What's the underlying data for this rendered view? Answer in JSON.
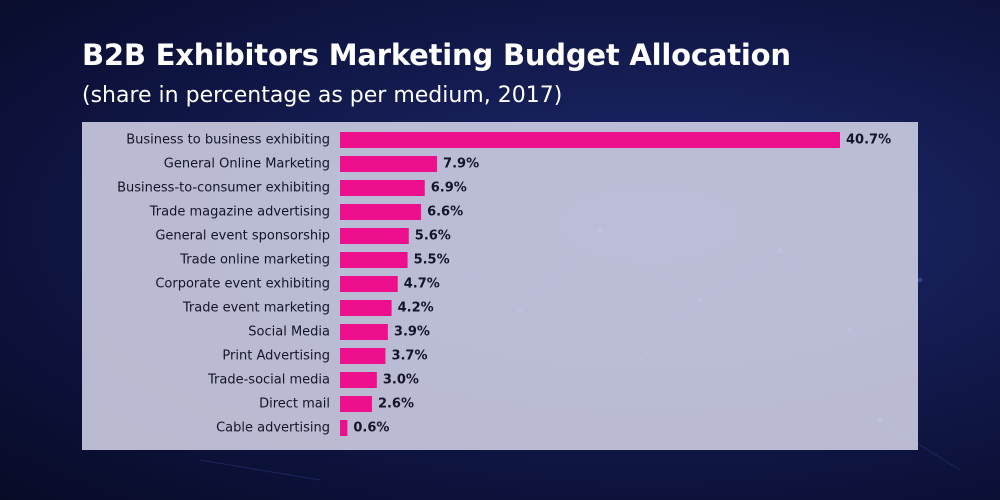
{
  "header": {
    "title": "B2B Exhibitors Marketing Budget Allocation",
    "subtitle": "(share in percentage as per medium, 2017)"
  },
  "colors": {
    "bar": "#ee0f8c",
    "panel": "#d6d6ea",
    "text": "#14142a",
    "background": "#111849"
  },
  "chart_data": {
    "type": "bar",
    "orientation": "horizontal",
    "title": "B2B Exhibitors Marketing Budget Allocation",
    "subtitle": "(share in percentage as per medium, 2017)",
    "categories": [
      "Business to business exhibiting",
      "General Online Marketing",
      "Business-to-consumer exhibiting",
      "Trade magazine advertising",
      "General event sponsorship",
      "Trade online marketing",
      "Corporate event exhibiting",
      "Trade event marketing",
      "Social Media",
      "Print Advertising",
      "Trade-social media",
      "Direct mail",
      "Cable advertising"
    ],
    "values": [
      40.7,
      7.9,
      6.9,
      6.6,
      5.6,
      5.5,
      4.7,
      4.2,
      3.9,
      3.7,
      3.0,
      2.6,
      0.6
    ],
    "value_labels": [
      "40.7%",
      "7.9%",
      "6.9%",
      "6.6%",
      "5.6%",
      "5.5%",
      "4.7%",
      "4.2%",
      "3.9%",
      "3.7%",
      "3.0%",
      "2.6%",
      "0.6%"
    ],
    "unit": "%",
    "xlim": [
      0,
      40.7
    ],
    "grid": false,
    "legend": "none"
  }
}
